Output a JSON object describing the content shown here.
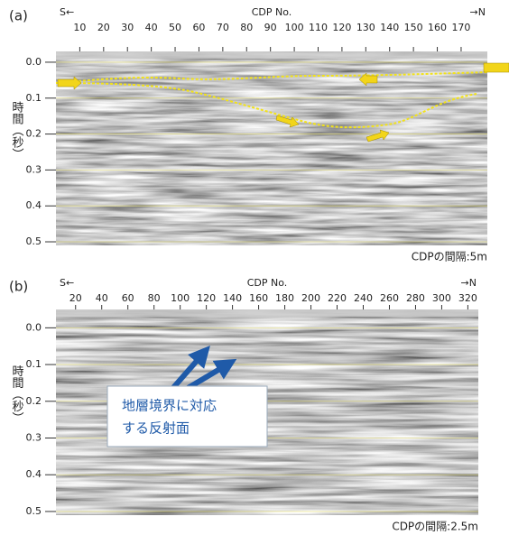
{
  "chart_data": [
    {
      "type": "seismic",
      "panel_label": "(a)",
      "left_dir": "S←",
      "right_dir": "→N",
      "xlabel": "CDP No.",
      "ylabel": "時間（秒）",
      "note": "CDPの間隔:5m",
      "xlim": [
        0,
        181
      ],
      "xticks": [
        10,
        20,
        30,
        40,
        50,
        60,
        70,
        80,
        90,
        100,
        110,
        120,
        130,
        140,
        150,
        160,
        170
      ],
      "ylim": [
        -0.03,
        0.51
      ],
      "yticks": [
        {
          "value": 0,
          "label": "0.0"
        },
        0.1,
        0.2,
        0.3,
        0.4,
        0.5
      ],
      "grid": true
    },
    {
      "type": "seismic",
      "panel_label": "(b)",
      "left_dir": "S←",
      "right_dir": "→N",
      "xlabel": "CDP No.",
      "ylabel": "時間（秒）",
      "note": "CDPの間隔:2.5m",
      "xlim": [
        5,
        328
      ],
      "xticks": [
        20,
        40,
        60,
        80,
        100,
        120,
        140,
        160,
        180,
        200,
        220,
        240,
        260,
        280,
        300,
        320
      ],
      "ylim": [
        -0.05,
        0.51
      ],
      "yticks": [
        {
          "value": 0,
          "label": "0.0"
        },
        0.1,
        0.2,
        0.3,
        0.4,
        0.5
      ],
      "grid": true,
      "annotation": [
        "地層境界に対応",
        "する反射面"
      ]
    }
  ]
}
